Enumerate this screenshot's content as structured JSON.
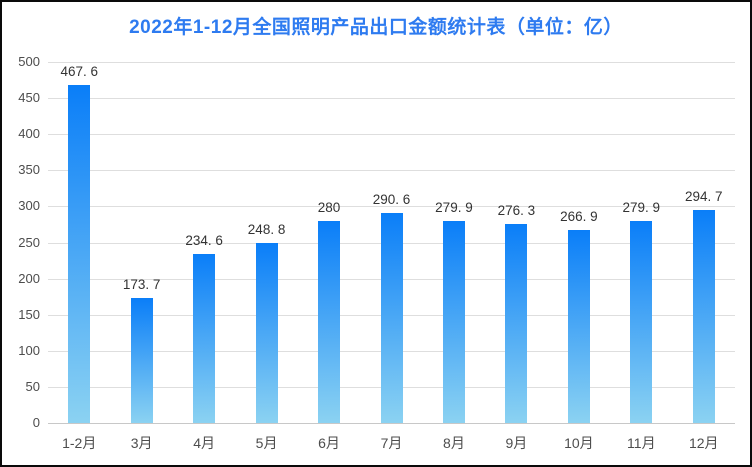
{
  "page": {
    "background": "#ffffff",
    "border_color": "#0a0a0a"
  },
  "chart_data": {
    "type": "bar",
    "title": "2022年1-12月全国照明产品出口金额统计表（单位：亿）",
    "title_color": "#2e7bf0",
    "categories": [
      "1-2月",
      "3月",
      "4月",
      "5月",
      "6月",
      "7月",
      "8月",
      "9月",
      "10月",
      "11月",
      "12月"
    ],
    "values": [
      467.6,
      173.7,
      234.6,
      248.8,
      280,
      290.6,
      279.9,
      276.3,
      266.9,
      279.9,
      294.7
    ],
    "value_labels": [
      "467. 6",
      "173. 7",
      "234. 6",
      "248. 8",
      "280",
      "290. 6",
      "279. 9",
      "276. 3",
      "266. 9",
      "279. 9",
      "294. 7"
    ],
    "xlabel": "",
    "ylabel": "",
    "ylim": [
      0,
      500
    ],
    "ytick_step": 50,
    "grid": true,
    "legend_position": "none",
    "colors": {
      "bar_gradient_top": "#0a7ef8",
      "bar_gradient_bottom": "#8bd2f2",
      "gridline": "#dedede",
      "baseline": "#c8c8c8",
      "value_label": "#333333",
      "axis_label": "#4d4d4d"
    }
  }
}
